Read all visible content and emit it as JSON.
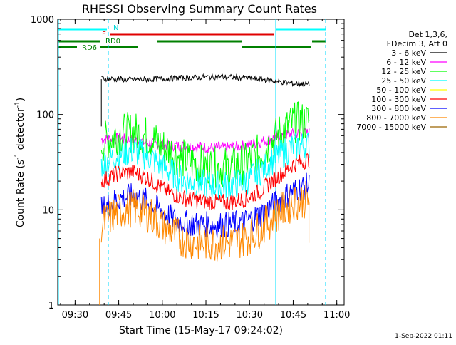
{
  "chart_data": {
    "type": "line",
    "title": "RHESSI Observing Summary Count Rates",
    "xlabel": "Start Time (15-May-17 09:24:02)",
    "ylabel_main": "Count Rate (s",
    "ylabel_exp1": "-1",
    "ylabel_mid": " detector",
    "ylabel_exp2": "-1",
    "ylabel_end": ")",
    "x_start_minute": 564.03,
    "xlim_minutes_from_start": [
      0,
      98.5
    ],
    "y_scale": "log",
    "ylim": [
      1,
      1000
    ],
    "grid": false,
    "x_ticks": [
      "09:30",
      "09:45",
      "10:00",
      "10:15",
      "10:30",
      "10:45",
      "11:00"
    ],
    "y_ticks": [
      "1",
      "10",
      "100",
      "1000"
    ],
    "legend_header": [
      "Det 1,3,6,",
      "FDecim 3, Att 0"
    ],
    "series": [
      {
        "name": "3 - 6 keV",
        "color": "#000000",
        "start_min": 15.0,
        "end_min": 86.5,
        "values": [
          240,
          235,
          232,
          234,
          238,
          242,
          246,
          248,
          247,
          242,
          234,
          222,
          212,
          208
        ]
      },
      {
        "name": "6 - 12 keV",
        "color": "#ff00ff",
        "start_min": 15.0,
        "end_min": 86.5,
        "values": [
          55,
          56,
          54,
          50,
          48,
          47,
          46,
          45,
          45,
          47,
          52,
          58,
          63,
          64
        ]
      },
      {
        "name": "12 - 25 keV",
        "color": "#00ff00",
        "start_min": 15.0,
        "end_min": 86.5,
        "values": [
          50,
          62,
          66,
          58,
          44,
          35,
          30,
          28,
          28,
          31,
          40,
          60,
          82,
          85
        ]
      },
      {
        "name": "25 - 50 keV",
        "color": "#00ffff",
        "start_min": 15.0,
        "end_min": 86.5,
        "values": [
          30,
          38,
          42,
          36,
          27,
          21,
          19,
          18,
          18,
          20,
          26,
          36,
          46,
          48
        ]
      },
      {
        "name": "50 - 100 keV",
        "color": "#ffff00",
        "start_min": 15.0,
        "end_min": 86.5,
        "values": [
          0,
          0,
          0,
          0,
          0,
          0,
          0,
          0,
          0,
          0,
          0,
          0,
          0,
          0
        ]
      },
      {
        "name": "100 - 300 keV",
        "color": "#ff0000",
        "start_min": 15.0,
        "end_min": 86.5,
        "values": [
          20,
          24,
          25,
          21,
          16,
          13.5,
          12.5,
          12,
          12,
          13,
          16,
          22,
          30,
          34
        ]
      },
      {
        "name": "300 - 800 keV",
        "color": "#0000ff",
        "start_min": 15.0,
        "end_min": 86.5,
        "values": [
          10,
          13,
          14,
          12,
          9,
          7.5,
          7,
          7,
          7,
          7.5,
          9,
          12,
          16,
          18
        ]
      },
      {
        "name": "800 - 7000 keV",
        "color": "#ff8800",
        "start_min": 15.0,
        "end_min": 86.5,
        "values": [
          7,
          9.5,
          10.5,
          9,
          6.5,
          5,
          4.5,
          4.5,
          4.5,
          5,
          6.5,
          9,
          12,
          13
        ]
      },
      {
        "name": "7000 - 15000 keV",
        "color": "#9a6400",
        "start_min": 15.0,
        "end_min": 86.5,
        "values": [
          0,
          0,
          0,
          0,
          0,
          0,
          0,
          0,
          0,
          0,
          0,
          0,
          0,
          0
        ]
      }
    ],
    "annotations": {
      "night_label": "N",
      "flare_label": "F",
      "rd0_label": "RD0",
      "rd6_label": "RD6"
    },
    "timestamp": "1-Sep-2022 01:11"
  }
}
